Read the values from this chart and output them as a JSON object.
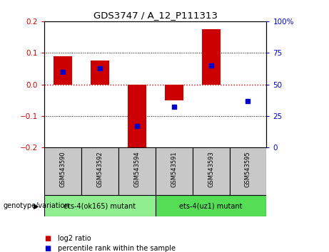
{
  "title": "GDS3747 / A_12_P111313",
  "samples": [
    "GSM543590",
    "GSM543592",
    "GSM543594",
    "GSM543591",
    "GSM543593",
    "GSM543595"
  ],
  "log2_ratio": [
    0.09,
    0.075,
    -0.205,
    -0.05,
    0.175,
    0.0
  ],
  "percentile_rank": [
    60,
    63,
    17,
    32,
    65,
    37
  ],
  "ylim_left": [
    -0.2,
    0.2
  ],
  "ylim_right": [
    0,
    100
  ],
  "yticks_left": [
    -0.2,
    -0.1,
    0.0,
    0.1,
    0.2
  ],
  "yticks_right": [
    0,
    25,
    50,
    75,
    100
  ],
  "bar_color": "#cc0000",
  "dot_color": "#0000cc",
  "zero_line_color": "#cc0000",
  "grid_color": "#000000",
  "group1_label": "ets-4(ok165) mutant",
  "group2_label": "ets-4(uz1) mutant",
  "group1_color": "#90ee90",
  "group2_color": "#55dd55",
  "genotype_label": "genotype/variation",
  "legend_log2": "log2 ratio",
  "legend_pct": "percentile rank within the sample",
  "bar_width": 0.5,
  "label_bg": "#c8c8c8"
}
